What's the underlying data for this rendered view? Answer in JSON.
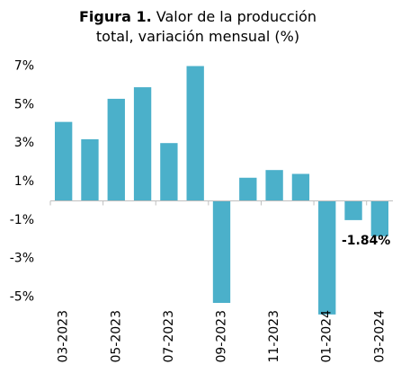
{
  "chart_data": {
    "type": "bar",
    "title_label": "Figura 1.",
    "title": "Valor de la producción total, variación mensual (%)",
    "categories": [
      "03-2023",
      null,
      "05-2023",
      null,
      "07-2023",
      null,
      "09-2023",
      null,
      "11-2023",
      null,
      "01-2024",
      null,
      "03-2024"
    ],
    "values": [
      4.1,
      3.2,
      5.3,
      5.9,
      3.0,
      7.0,
      -5.3,
      1.2,
      1.6,
      1.4,
      -5.9,
      -1.0,
      -1.84
    ],
    "value_labels": [
      null,
      null,
      null,
      null,
      null,
      null,
      null,
      null,
      null,
      null,
      null,
      null,
      "-1.84%"
    ],
    "color": "#4bb0ca",
    "ylim": [
      -6,
      7
    ],
    "yticks": [
      {
        "value": 7,
        "label": "7%"
      },
      {
        "value": 5,
        "label": "5%"
      },
      {
        "value": 3,
        "label": "3%"
      },
      {
        "value": 1,
        "label": "1%"
      },
      {
        "value": -1,
        "label": "-1%"
      },
      {
        "value": -3,
        "label": "-3%"
      },
      {
        "value": -5,
        "label": "-5%"
      }
    ],
    "grid": false
  }
}
